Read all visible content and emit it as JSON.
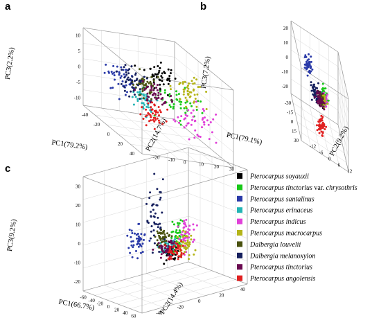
{
  "chart_data": [
    {
      "panel": "a",
      "type": "scatter",
      "axes": {
        "x": {
          "label": "PC1(79.2%)",
          "ticks": [
            "-40",
            "-20",
            "0",
            "20",
            "40"
          ],
          "range": [
            -45,
            45
          ]
        },
        "y": {
          "label": "PC2(14.7%)",
          "ticks": [
            "-20",
            "-10",
            "0",
            "10",
            "20",
            "30"
          ],
          "range": [
            -22,
            32
          ]
        },
        "z": {
          "label": "PC3(2.2%)",
          "ticks": [
            "-10",
            "-5",
            "0",
            "5",
            "10"
          ],
          "range": [
            -13,
            13
          ]
        }
      },
      "series": [
        {
          "name": "Pterocarpus soyauxii",
          "center": [
            -5,
            8,
            6
          ],
          "spread": [
            5,
            4,
            2.5
          ]
        },
        {
          "name": "Pterocarpus tinctorius var. chrysothris",
          "center": [
            5,
            16,
            0
          ],
          "spread": [
            4,
            6,
            2.5
          ]
        },
        {
          "name": "Pterocarpus santalinus",
          "center": [
            -25,
            -8,
            1
          ],
          "spread": [
            6,
            3,
            2.5
          ]
        },
        {
          "name": "Pterocarpus erinaceus",
          "center": [
            -10,
            0,
            -3
          ],
          "spread": [
            4,
            3,
            2.5
          ]
        },
        {
          "name": "Pterocarpus indicus",
          "center": [
            20,
            20,
            -3
          ],
          "spread": [
            8,
            6,
            3
          ]
        },
        {
          "name": "Pterocarpus macrocarpus",
          "center": [
            5,
            22,
            4
          ],
          "spread": [
            4,
            4,
            2
          ]
        },
        {
          "name": "Dalbergia louvelii",
          "center": [
            -12,
            2,
            2
          ],
          "spread": [
            4,
            3,
            2
          ]
        },
        {
          "name": "Dalbergia melanoxylon",
          "center": [
            -15,
            -5,
            2
          ],
          "spread": [
            5,
            3,
            2.5
          ]
        },
        {
          "name": "Pterocarpus tinctorius",
          "center": [
            -5,
            5,
            0
          ],
          "spread": [
            5,
            4,
            2
          ]
        },
        {
          "name": "Pterocarpus angolensis",
          "center": [
            5,
            0,
            -5
          ],
          "spread": [
            4,
            4,
            2
          ]
        }
      ]
    },
    {
      "panel": "b",
      "type": "scatter",
      "axes": {
        "x": {
          "label": "PC1(79.1%)",
          "ticks": [
            "-30",
            "-15",
            "0",
            "15",
            "30"
          ],
          "range": [
            -35,
            35
          ]
        },
        "y": {
          "label": "PC2(9.2%)",
          "ticks": [
            "-12",
            "-6",
            "0",
            "6",
            "12"
          ],
          "range": [
            -14,
            14
          ]
        },
        "z": {
          "label": "PC3(7.2%)",
          "ticks": [
            "-20",
            "-10",
            "0",
            "10",
            "20"
          ],
          "range": [
            -25,
            25
          ]
        }
      },
      "series": [
        {
          "name": "Pterocarpus soyauxii",
          "center": [
            4,
            1,
            0
          ],
          "spread": [
            1.5,
            1,
            2
          ]
        },
        {
          "name": "Pterocarpus tinctorius var. chrysothris",
          "center": [
            6,
            2,
            5
          ],
          "spread": [
            1,
            1,
            3
          ]
        },
        {
          "name": "Pterocarpus santalinus",
          "center": [
            -32,
            -4,
            4
          ],
          "spread": [
            3,
            1,
            3
          ]
        },
        {
          "name": "Pterocarpus erinaceus",
          "center": [
            5,
            1,
            1
          ],
          "spread": [
            1,
            1,
            2
          ]
        },
        {
          "name": "Pterocarpus indicus",
          "center": [
            5,
            2,
            2
          ],
          "spread": [
            1.5,
            1,
            2
          ]
        },
        {
          "name": "Pterocarpus macrocarpus",
          "center": [
            6,
            1,
            1
          ],
          "spread": [
            1,
            1,
            2
          ]
        },
        {
          "name": "Dalbergia louvelii",
          "center": [
            2,
            0,
            0
          ],
          "spread": [
            2,
            1,
            2
          ]
        },
        {
          "name": "Dalbergia melanoxylon",
          "center": [
            -5,
            -2,
            -1
          ],
          "spread": [
            6,
            1,
            2
          ]
        },
        {
          "name": "Pterocarpus tinctorius",
          "center": [
            3,
            0,
            -1
          ],
          "spread": [
            2,
            1,
            2
          ]
        },
        {
          "name": "Pterocarpus angolensis",
          "center": [
            8,
            0,
            -16
          ],
          "spread": [
            1,
            1,
            3
          ]
        }
      ]
    },
    {
      "panel": "c",
      "type": "scatter",
      "axes": {
        "x": {
          "label": "PC1(66.7%)",
          "ticks": [
            "-60",
            "-40",
            "-20",
            "0",
            "20",
            "40",
            "60"
          ],
          "range": [
            -60,
            60
          ]
        },
        "y": {
          "label": "PC2(14.4%)",
          "ticks": [
            "-40",
            "-20",
            "0",
            "20",
            "40"
          ],
          "range": [
            -40,
            40
          ]
        },
        "z": {
          "label": "PC3(9.2%)",
          "ticks": [
            "-20",
            "-10",
            "0",
            "10",
            "20",
            "30"
          ],
          "range": [
            -22,
            32
          ]
        }
      },
      "series": [
        {
          "name": "Pterocarpus soyauxii",
          "center": [
            12,
            0,
            -5
          ],
          "spread": [
            6,
            3,
            2
          ]
        },
        {
          "name": "Pterocarpus tinctorius var. chrysothris",
          "center": [
            10,
            5,
            2
          ],
          "spread": [
            4,
            2,
            4
          ]
        },
        {
          "name": "Pterocarpus santalinus",
          "center": [
            -45,
            -5,
            -3
          ],
          "spread": [
            6,
            3,
            4
          ]
        },
        {
          "name": "Pterocarpus erinaceus",
          "center": [
            5,
            0,
            -2
          ],
          "spread": [
            5,
            3,
            2
          ]
        },
        {
          "name": "Pterocarpus indicus",
          "center": [
            28,
            5,
            4
          ],
          "spread": [
            5,
            3,
            4
          ]
        },
        {
          "name": "Pterocarpus macrocarpus",
          "center": [
            28,
            5,
            0
          ],
          "spread": [
            5,
            3,
            3
          ]
        },
        {
          "name": "Dalbergia louvelii",
          "center": [
            -5,
            0,
            1
          ],
          "spread": [
            4,
            2,
            2
          ]
        },
        {
          "name": "Dalbergia melanoxylon",
          "center": [
            -20,
            0,
            12
          ],
          "spread": [
            6,
            3,
            9
          ]
        },
        {
          "name": "Pterocarpus tinctorius",
          "center": [
            5,
            0,
            -3
          ],
          "spread": [
            5,
            3,
            2
          ]
        },
        {
          "name": "Pterocarpus angolensis",
          "center": [
            20,
            0,
            -3
          ],
          "spread": [
            5,
            3,
            2
          ]
        }
      ]
    }
  ],
  "panels": [
    "a",
    "b",
    "c"
  ],
  "legend": [
    {
      "name": "Pterocarpus soyauxii",
      "italic": "Pterocarpus soyauxii",
      "roman": "",
      "tail": "",
      "color": "#000000"
    },
    {
      "name": "Pterocarpus tinctorius var. chrysothris",
      "italic": "Pterocarpus tinctorius",
      "roman": " var. ",
      "tail": "chrysothris",
      "color": "#18c818"
    },
    {
      "name": "Pterocarpus santalinus",
      "italic": "Pterocarpus santalinus",
      "roman": "",
      "tail": "",
      "color": "#2a3aa8"
    },
    {
      "name": "Pterocarpus erinaceus",
      "italic": "Pterocarpus erinaceus",
      "roman": "",
      "tail": "",
      "color": "#22b4b4"
    },
    {
      "name": "Pterocarpus indicus",
      "italic": "Pterocarpus indicus",
      "roman": "",
      "tail": "",
      "color": "#e040d8"
    },
    {
      "name": "Pterocarpus macrocarpus",
      "italic": "Pterocarpus macrocarpus",
      "roman": "",
      "tail": "",
      "color": "#b4b418"
    },
    {
      "name": "Dalbergia louvelii",
      "italic": "Dalbergia louvelii",
      "roman": "",
      "tail": "",
      "color": "#4a5210"
    },
    {
      "name": "Dalbergia melanoxylon",
      "italic": "Dalbergia melanoxylon",
      "roman": "",
      "tail": "",
      "color": "#16205e"
    },
    {
      "name": "Pterocarpus tinctorius",
      "italic": "Pterocarpus tinctorius",
      "roman": "",
      "tail": "",
      "color": "#6a0a50"
    },
    {
      "name": "Pterocarpus angolensis",
      "italic": "Pterocarpus angolensis",
      "roman": "",
      "tail": "",
      "color": "#e02020"
    }
  ]
}
